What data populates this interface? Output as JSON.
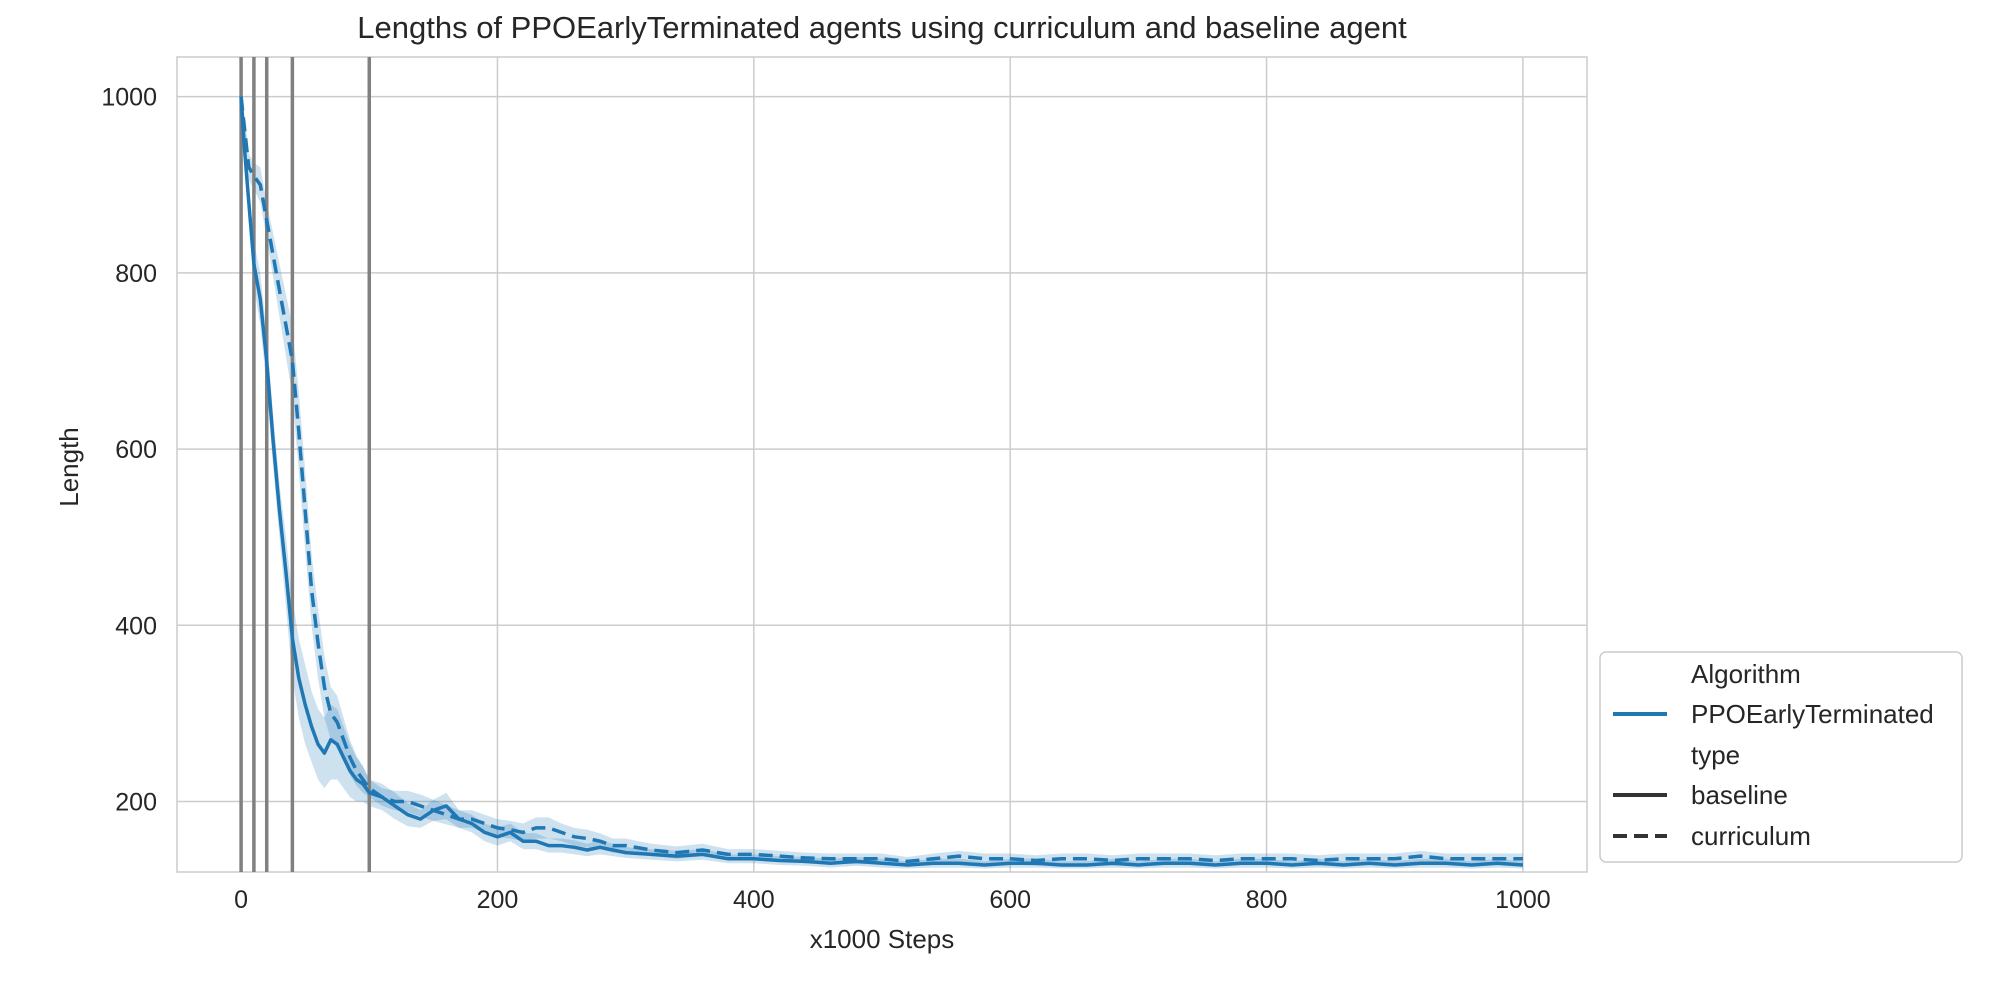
{
  "chart_data": {
    "type": "line",
    "title": "Lengths of PPOEarlyTerminated agents using curriculum and baseline agent",
    "xlabel": "x1000 Steps",
    "ylabel": "Length",
    "xlim": [
      -50,
      1050
    ],
    "ylim": [
      120,
      1045
    ],
    "xticks": [
      0,
      200,
      400,
      600,
      800,
      1000
    ],
    "yticks": [
      200,
      400,
      600,
      800,
      1000
    ],
    "grid": true,
    "legend_position": "lower-right-outside",
    "vlines": [
      0,
      10,
      20,
      40,
      100
    ],
    "series": [
      {
        "name": "PPOEarlyTerminated",
        "type": "baseline",
        "style": "solid",
        "color": "#1f77b4",
        "x": [
          0,
          3,
          6,
          10,
          15,
          20,
          25,
          30,
          35,
          40,
          45,
          50,
          55,
          60,
          65,
          70,
          75,
          80,
          85,
          90,
          95,
          100,
          110,
          120,
          130,
          140,
          150,
          160,
          170,
          180,
          190,
          200,
          210,
          220,
          230,
          240,
          250,
          260,
          270,
          280,
          290,
          300,
          320,
          340,
          360,
          380,
          400,
          420,
          440,
          460,
          480,
          500,
          520,
          540,
          560,
          580,
          600,
          620,
          640,
          660,
          680,
          700,
          720,
          740,
          760,
          780,
          800,
          820,
          840,
          860,
          880,
          900,
          920,
          940,
          960,
          980,
          1000
        ],
        "y": [
          1000,
          935,
          880,
          810,
          770,
          700,
          610,
          530,
          460,
          385,
          340,
          310,
          285,
          265,
          255,
          270,
          265,
          250,
          235,
          225,
          220,
          210,
          205,
          195,
          185,
          180,
          190,
          195,
          180,
          175,
          165,
          160,
          165,
          155,
          155,
          150,
          150,
          148,
          145,
          148,
          145,
          142,
          140,
          138,
          140,
          135,
          135,
          133,
          132,
          130,
          132,
          130,
          128,
          130,
          130,
          128,
          130,
          130,
          128,
          128,
          130,
          128,
          130,
          130,
          128,
          130,
          130,
          128,
          130,
          128,
          130,
          128,
          130,
          130,
          128,
          130,
          128
        ],
        "ci_low": [
          990,
          915,
          860,
          785,
          740,
          670,
          580,
          500,
          420,
          340,
          295,
          265,
          245,
          225,
          215,
          225,
          225,
          215,
          205,
          200,
          200,
          195,
          190,
          180,
          172,
          170,
          178,
          180,
          170,
          165,
          155,
          150,
          155,
          146,
          146,
          142,
          142,
          140,
          138,
          140,
          138,
          136,
          134,
          132,
          134,
          130,
          130,
          128,
          127,
          125,
          127,
          125,
          124,
          125,
          125,
          124,
          125,
          125,
          124,
          124,
          125,
          124,
          125,
          125,
          124,
          125,
          125,
          124,
          125,
          124,
          125,
          124,
          125,
          125,
          124,
          125,
          124
        ],
        "ci_high": [
          1000,
          955,
          900,
          835,
          800,
          730,
          640,
          560,
          500,
          430,
          385,
          355,
          325,
          305,
          295,
          310,
          305,
          285,
          265,
          250,
          240,
          225,
          220,
          210,
          198,
          190,
          202,
          210,
          190,
          185,
          175,
          170,
          175,
          164,
          164,
          158,
          158,
          156,
          152,
          156,
          152,
          148,
          146,
          144,
          146,
          140,
          140,
          138,
          137,
          135,
          137,
          135,
          132,
          135,
          135,
          132,
          135,
          135,
          132,
          132,
          135,
          132,
          135,
          135,
          132,
          135,
          135,
          132,
          135,
          132,
          135,
          132,
          135,
          135,
          132,
          135,
          132
        ]
      },
      {
        "name": "PPOEarlyTerminated",
        "type": "curriculum",
        "style": "dashed",
        "color": "#1f77b4",
        "x": [
          0,
          3,
          6,
          10,
          15,
          20,
          25,
          30,
          35,
          40,
          45,
          50,
          55,
          60,
          65,
          70,
          75,
          80,
          85,
          90,
          95,
          100,
          110,
          120,
          130,
          140,
          150,
          160,
          170,
          180,
          190,
          200,
          210,
          220,
          230,
          240,
          250,
          260,
          270,
          280,
          290,
          300,
          320,
          340,
          360,
          380,
          400,
          420,
          440,
          460,
          480,
          500,
          520,
          540,
          560,
          580,
          600,
          620,
          640,
          660,
          680,
          700,
          720,
          740,
          760,
          780,
          800,
          820,
          840,
          860,
          880,
          900,
          920,
          940,
          960,
          980,
          1000
        ],
        "y": [
          1000,
          960,
          920,
          910,
          900,
          860,
          820,
          780,
          740,
          700,
          620,
          530,
          440,
          380,
          330,
          300,
          290,
          270,
          250,
          235,
          225,
          215,
          205,
          200,
          200,
          195,
          190,
          185,
          180,
          180,
          175,
          170,
          168,
          165,
          170,
          170,
          165,
          160,
          158,
          155,
          150,
          150,
          145,
          142,
          145,
          140,
          140,
          138,
          136,
          135,
          135,
          135,
          132,
          135,
          138,
          135,
          135,
          133,
          135,
          135,
          133,
          135,
          135,
          135,
          133,
          135,
          135,
          135,
          133,
          135,
          135,
          135,
          138,
          135,
          135,
          135,
          135
        ],
        "ci_low": [
          990,
          945,
          905,
          895,
          880,
          840,
          795,
          750,
          705,
          660,
          575,
          485,
          400,
          340,
          295,
          270,
          260,
          245,
          230,
          218,
          210,
          205,
          195,
          190,
          188,
          183,
          178,
          174,
          170,
          170,
          165,
          160,
          158,
          155,
          158,
          158,
          155,
          150,
          148,
          146,
          142,
          142,
          138,
          135,
          138,
          134,
          134,
          132,
          130,
          129,
          129,
          129,
          127,
          129,
          132,
          129,
          129,
          127,
          129,
          129,
          127,
          129,
          129,
          129,
          127,
          129,
          129,
          129,
          127,
          129,
          129,
          129,
          132,
          129,
          129,
          129,
          129
        ],
        "ci_high": [
          1000,
          975,
          935,
          925,
          920,
          880,
          845,
          810,
          775,
          740,
          665,
          575,
          480,
          420,
          365,
          330,
          320,
          295,
          270,
          252,
          240,
          225,
          215,
          212,
          212,
          208,
          202,
          196,
          190,
          190,
          185,
          180,
          178,
          175,
          182,
          182,
          175,
          170,
          168,
          164,
          158,
          158,
          152,
          149,
          152,
          146,
          146,
          144,
          142,
          141,
          141,
          141,
          137,
          141,
          144,
          141,
          141,
          139,
          141,
          141,
          139,
          141,
          141,
          141,
          139,
          141,
          141,
          141,
          139,
          141,
          141,
          141,
          144,
          141,
          141,
          141,
          141
        ]
      }
    ],
    "legend": {
      "title1": "Algorithm",
      "entry1": "PPOEarlyTerminated",
      "title2": "type",
      "entry2": "baseline",
      "entry3": "curriculum"
    }
  }
}
